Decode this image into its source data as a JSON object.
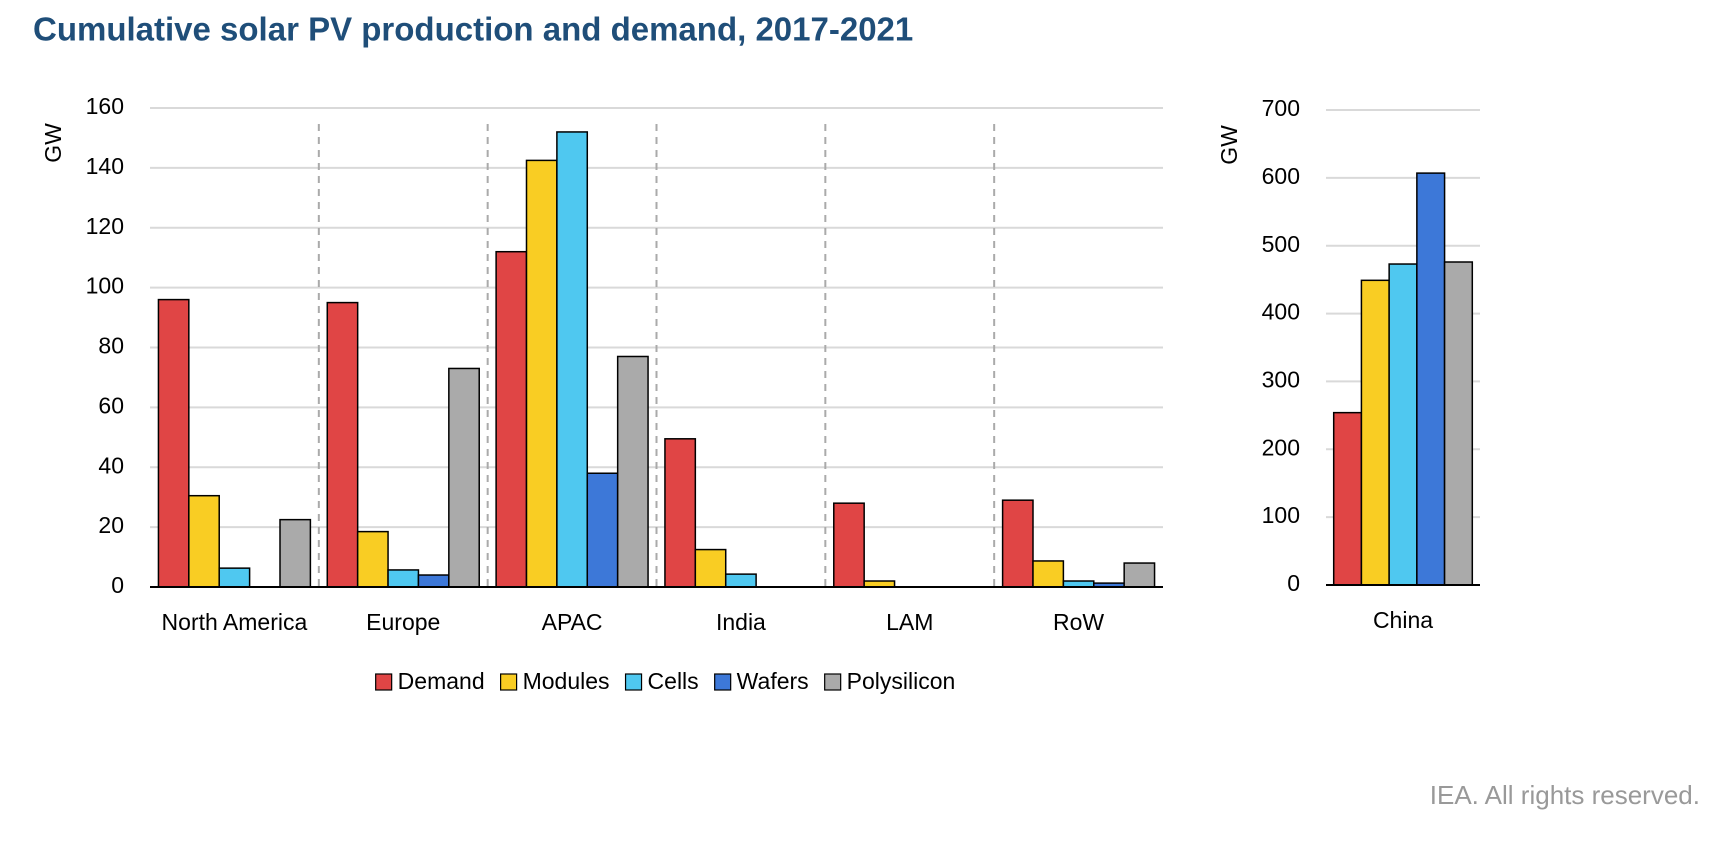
{
  "title": "Cumulative solar PV production and demand, 2017-2021",
  "source": "IEA. All rights reserved.",
  "chart_data": [
    {
      "type": "bar",
      "ylabel": "GW",
      "categories": [
        "North America",
        "Europe",
        "APAC",
        "India",
        "LAM",
        "RoW"
      ],
      "series": [
        {
          "name": "Demand",
          "color": "#e04545",
          "values": [
            96,
            95,
            112,
            49.5,
            28,
            29
          ]
        },
        {
          "name": "Modules",
          "color": "#f9cd23",
          "values": [
            30.5,
            18.5,
            142.5,
            12.5,
            2,
            8.7
          ]
        },
        {
          "name": "Cells",
          "color": "#4fc8f0",
          "values": [
            6.3,
            5.7,
            152,
            4.3,
            0,
            2
          ]
        },
        {
          "name": "Wafers",
          "color": "#3d78d8",
          "values": [
            0,
            4,
            38,
            0,
            0,
            1.3
          ]
        },
        {
          "name": "Polysilicon",
          "color": "#aaaaaa",
          "values": [
            22.5,
            73,
            77,
            0,
            0,
            8
          ]
        }
      ],
      "ylim": [
        0,
        160
      ],
      "yticks": [
        0,
        20,
        40,
        60,
        80,
        100,
        120,
        140,
        160
      ],
      "grid": true,
      "group_separators": true,
      "legend": "bottom"
    },
    {
      "type": "bar",
      "ylabel": "GW",
      "categories": [
        "China"
      ],
      "series": [
        {
          "color": "#e04545",
          "values": [
            254
          ]
        },
        {
          "color": "#f9cd23",
          "values": [
            449
          ]
        },
        {
          "color": "#4fc8f0",
          "values": [
            473
          ]
        },
        {
          "color": "#3d78d8",
          "values": [
            607
          ]
        },
        {
          "color": "#aaaaaa",
          "values": [
            476
          ]
        }
      ],
      "ylim": [
        0,
        700
      ],
      "yticks": [
        0,
        100,
        200,
        300,
        400,
        500,
        600,
        700
      ],
      "grid": true
    }
  ]
}
